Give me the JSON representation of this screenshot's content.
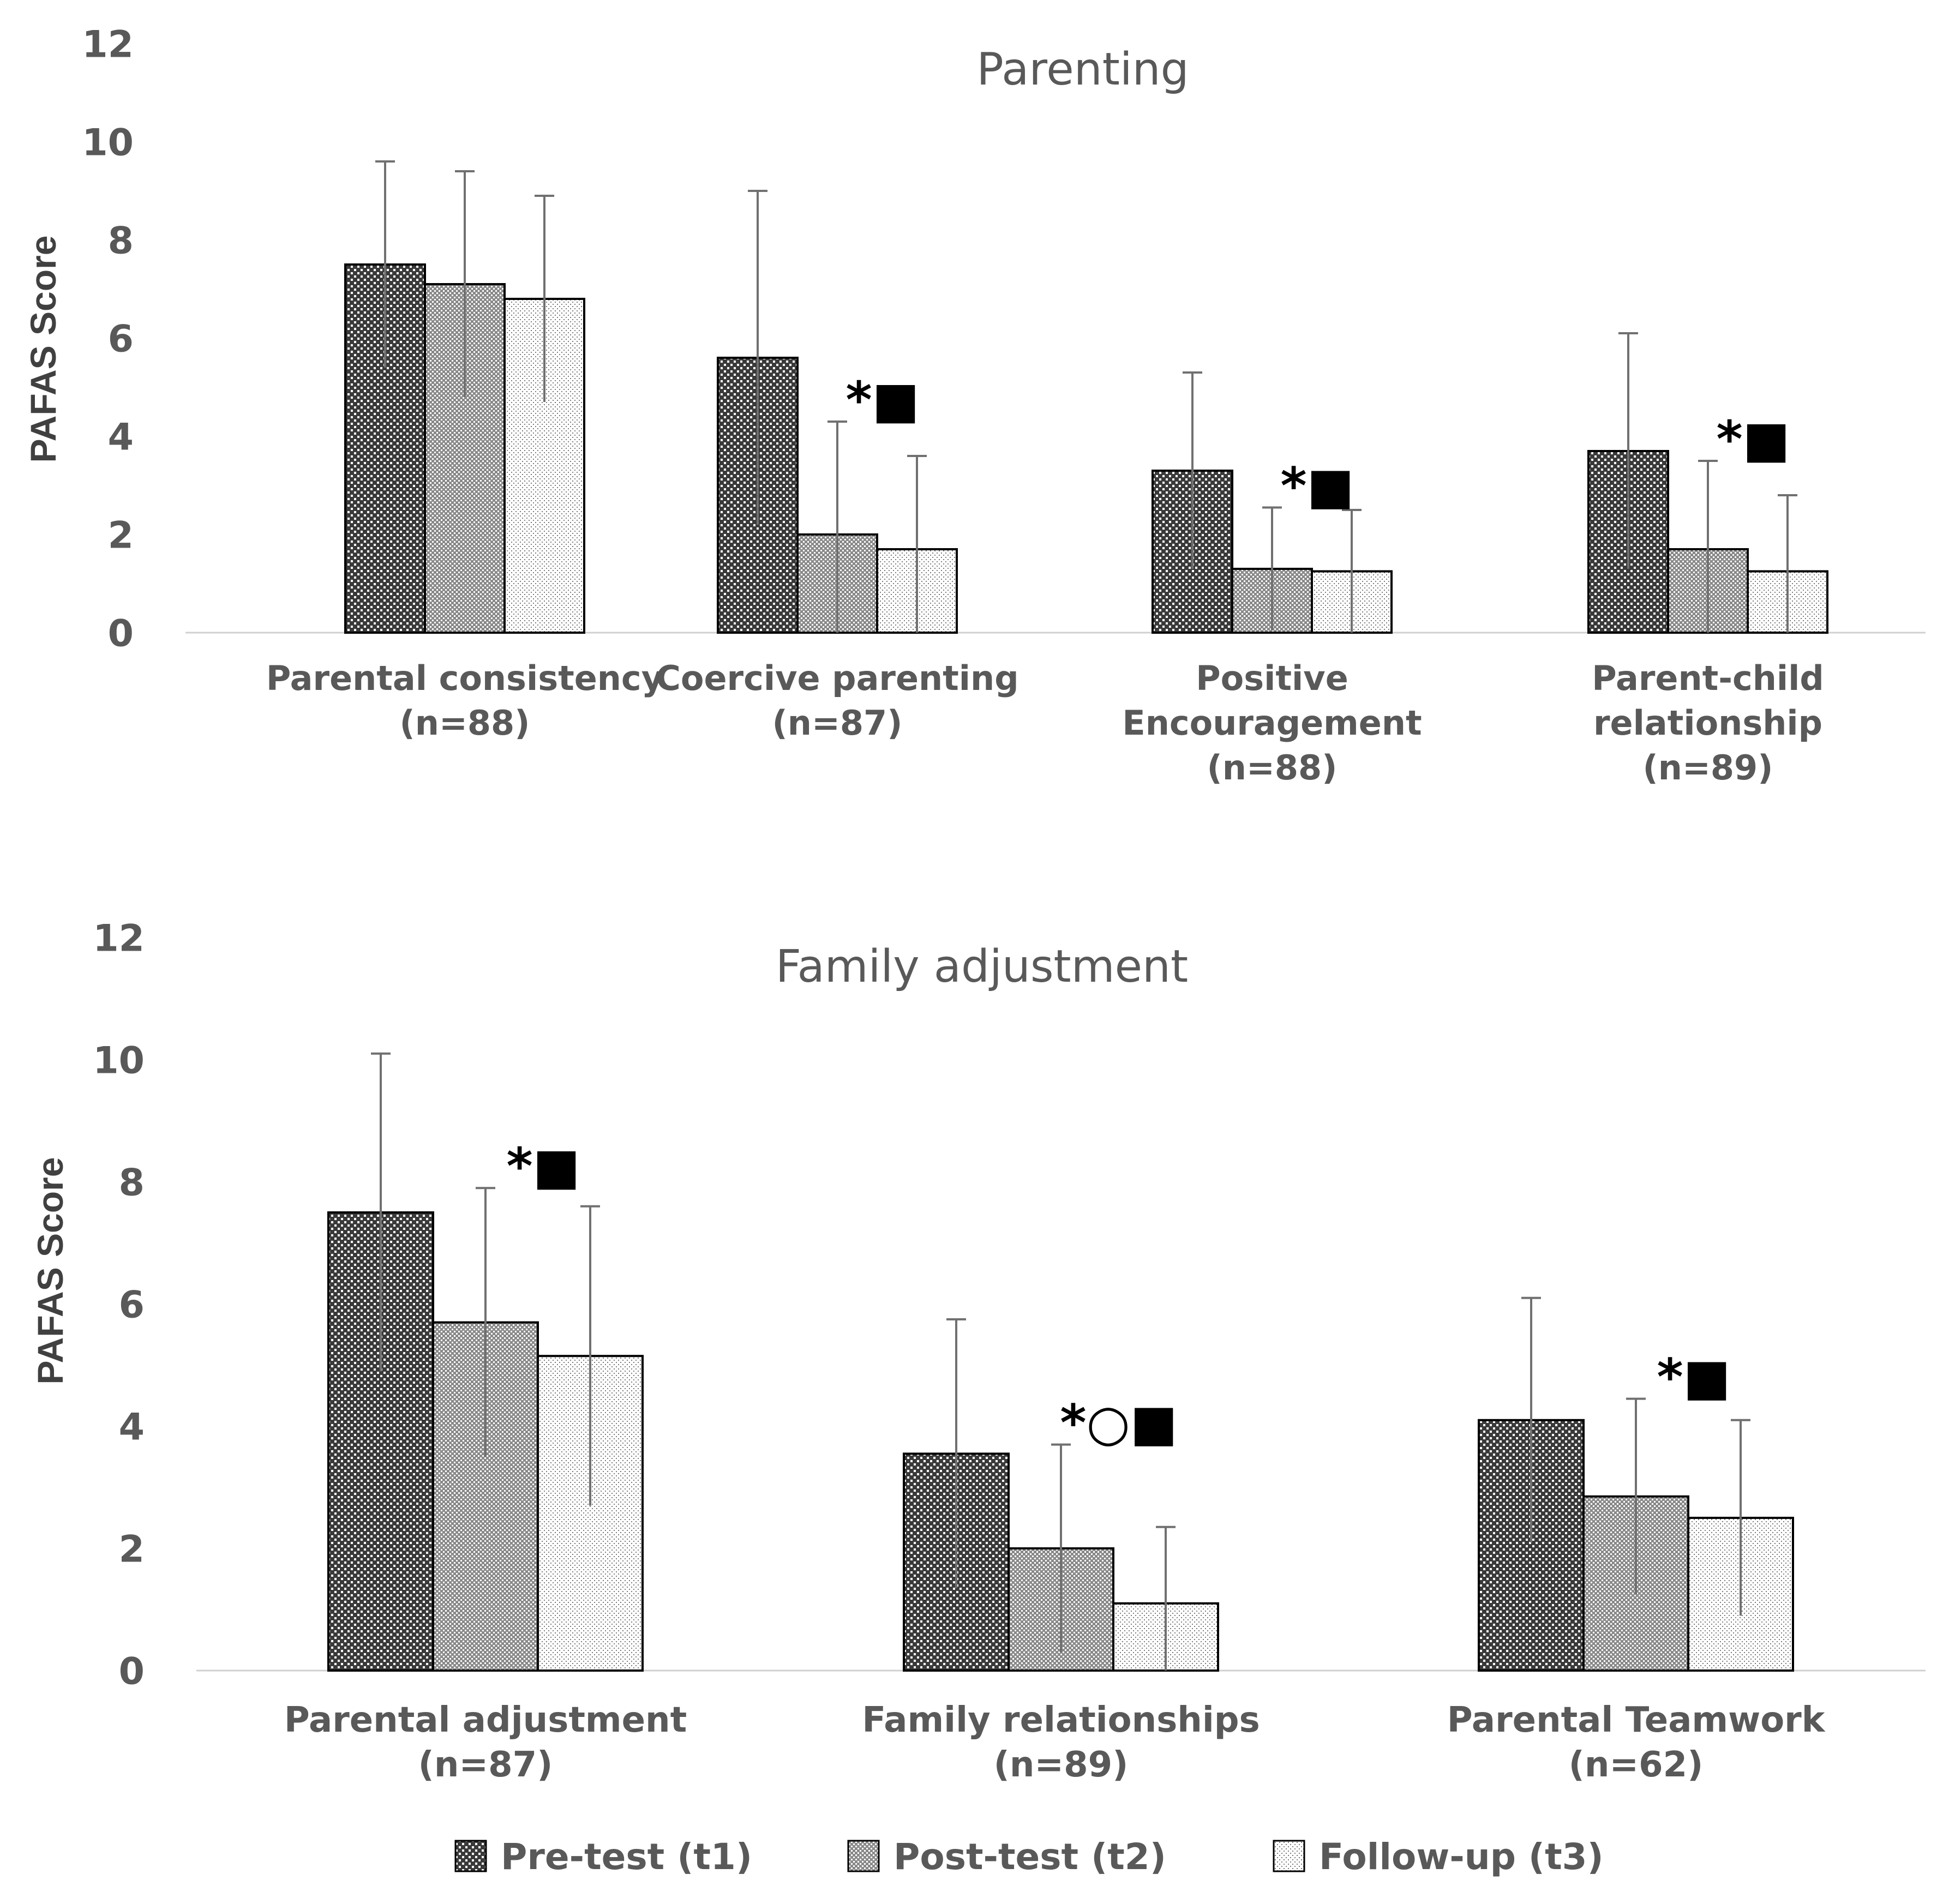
{
  "chart_data": [
    {
      "type": "bar",
      "title": "Parenting",
      "ylabel": "PAFAS Score",
      "xlabel": "",
      "ylim": [
        0,
        12
      ],
      "yticks": [
        "0",
        "2",
        "4",
        "6",
        "8",
        "10",
        "12"
      ],
      "categories": [
        [
          "Parental consistency",
          "(n=88)"
        ],
        [
          "Coercive parenting",
          "(n=87)"
        ],
        [
          "Positive",
          "Encouragement",
          "(n=88)"
        ],
        [
          "Parent-child",
          "relationship",
          "(n=89)"
        ]
      ],
      "series": [
        {
          "name": "Pre-test (t1)",
          "values": [
            7.5,
            5.6,
            3.3,
            3.7
          ],
          "errors": [
            2.1,
            3.4,
            2.0,
            2.4
          ]
        },
        {
          "name": "Post-test (t2)",
          "values": [
            7.1,
            2.0,
            1.3,
            1.7
          ],
          "errors": [
            2.3,
            2.3,
            1.25,
            1.8
          ]
        },
        {
          "name": "Follow-up (t3)",
          "values": [
            6.8,
            1.7,
            1.25,
            1.25
          ],
          "errors": [
            2.1,
            1.9,
            1.25,
            1.55
          ]
        }
      ],
      "annotations": [
        {
          "category": 1,
          "text": "*■"
        },
        {
          "category": 2,
          "text": "*■"
        },
        {
          "category": 3,
          "text": "*■"
        }
      ],
      "grid": false
    },
    {
      "type": "bar",
      "title": "Family adjustment",
      "ylabel": "PAFAS Score",
      "xlabel": "",
      "ylim": [
        0,
        12
      ],
      "yticks": [
        "0",
        "2",
        "4",
        "6",
        "8",
        "10",
        "12"
      ],
      "categories": [
        [
          "Parental adjustment",
          "(n=87)"
        ],
        [
          "Family relationships",
          "(n=89)"
        ],
        [
          "Parental Teamwork",
          "(n=62)"
        ]
      ],
      "series": [
        {
          "name": "Pre-test (t1)",
          "values": [
            7.5,
            3.55,
            4.1
          ],
          "errors": [
            2.6,
            2.2,
            2.0
          ]
        },
        {
          "name": "Post-test (t2)",
          "values": [
            5.7,
            2.0,
            2.85
          ],
          "errors": [
            2.2,
            1.7,
            1.6
          ]
        },
        {
          "name": "Follow-up (t3)",
          "values": [
            5.15,
            1.1,
            2.5
          ],
          "errors": [
            2.45,
            1.25,
            1.6
          ]
        }
      ],
      "annotations": [
        {
          "category": 0,
          "text": "*■"
        },
        {
          "category": 1,
          "text": "*○■"
        },
        {
          "category": 2,
          "text": "*■"
        }
      ],
      "grid": false
    }
  ],
  "legend": [
    "Pre-test (t1)",
    "Post-test (t2)",
    "Follow-up (t3)"
  ]
}
